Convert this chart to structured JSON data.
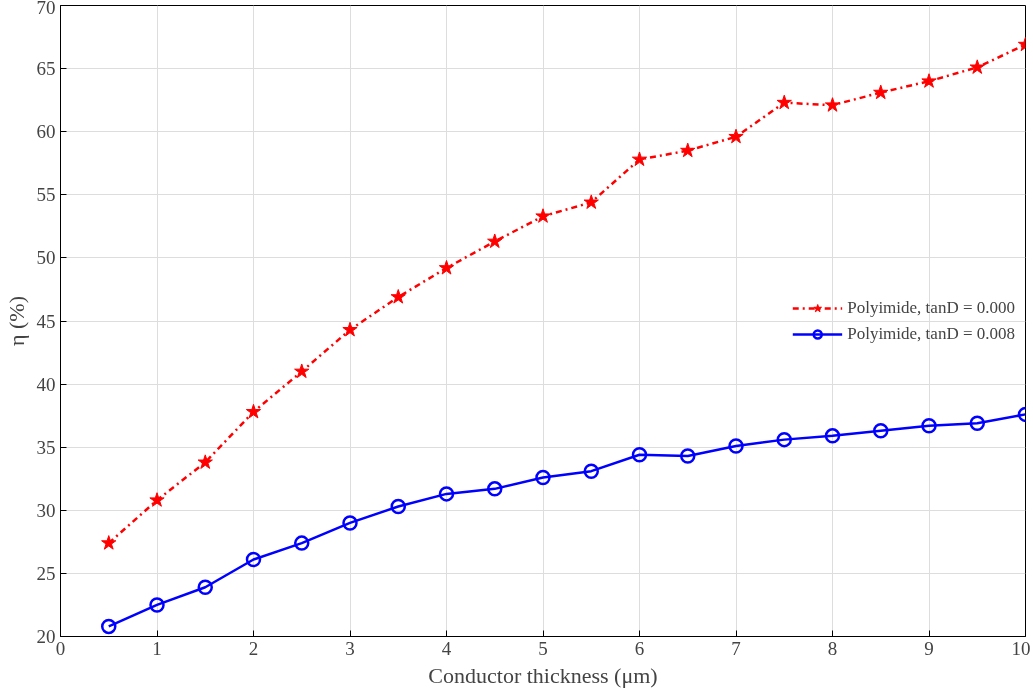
{
  "chart_data": {
    "type": "line",
    "xlabel": "Conductor thickness (μm)",
    "ylabel": "η (%)",
    "x": [
      0.5,
      1,
      1.5,
      2,
      2.5,
      3,
      3.5,
      4,
      4.5,
      5,
      5.5,
      6,
      6.5,
      7,
      7.5,
      8,
      8.5,
      9,
      9.5,
      10
    ],
    "series": [
      {
        "name": "Polyimide, tanD = 0.000",
        "color": "#ff0000",
        "marker": "star",
        "line_style": "dashdot",
        "values": [
          27.4,
          30.8,
          33.8,
          37.8,
          41.0,
          44.3,
          46.9,
          49.2,
          51.3,
          53.3,
          54.4,
          57.8,
          58.5,
          59.6,
          62.3,
          62.1,
          63.1,
          64.0,
          65.1,
          66.9
        ]
      },
      {
        "name": "Polyimide, tanD = 0.008",
        "color": "#0000ff",
        "marker": "circle",
        "line_style": "solid",
        "values": [
          20.8,
          22.5,
          23.9,
          26.1,
          27.4,
          29.0,
          30.3,
          31.3,
          31.7,
          32.6,
          33.1,
          34.4,
          34.3,
          35.1,
          35.6,
          35.9,
          36.3,
          36.7,
          36.9,
          37.6
        ]
      }
    ],
    "xlim": [
      0,
      10
    ],
    "xticks": [
      0,
      1,
      2,
      3,
      4,
      5,
      6,
      7,
      8,
      9,
      10
    ],
    "ylim": [
      20,
      70
    ],
    "yticks": [
      20,
      25,
      30,
      35,
      40,
      45,
      50,
      55,
      60,
      65,
      70
    ],
    "grid": true,
    "legend": "right"
  }
}
